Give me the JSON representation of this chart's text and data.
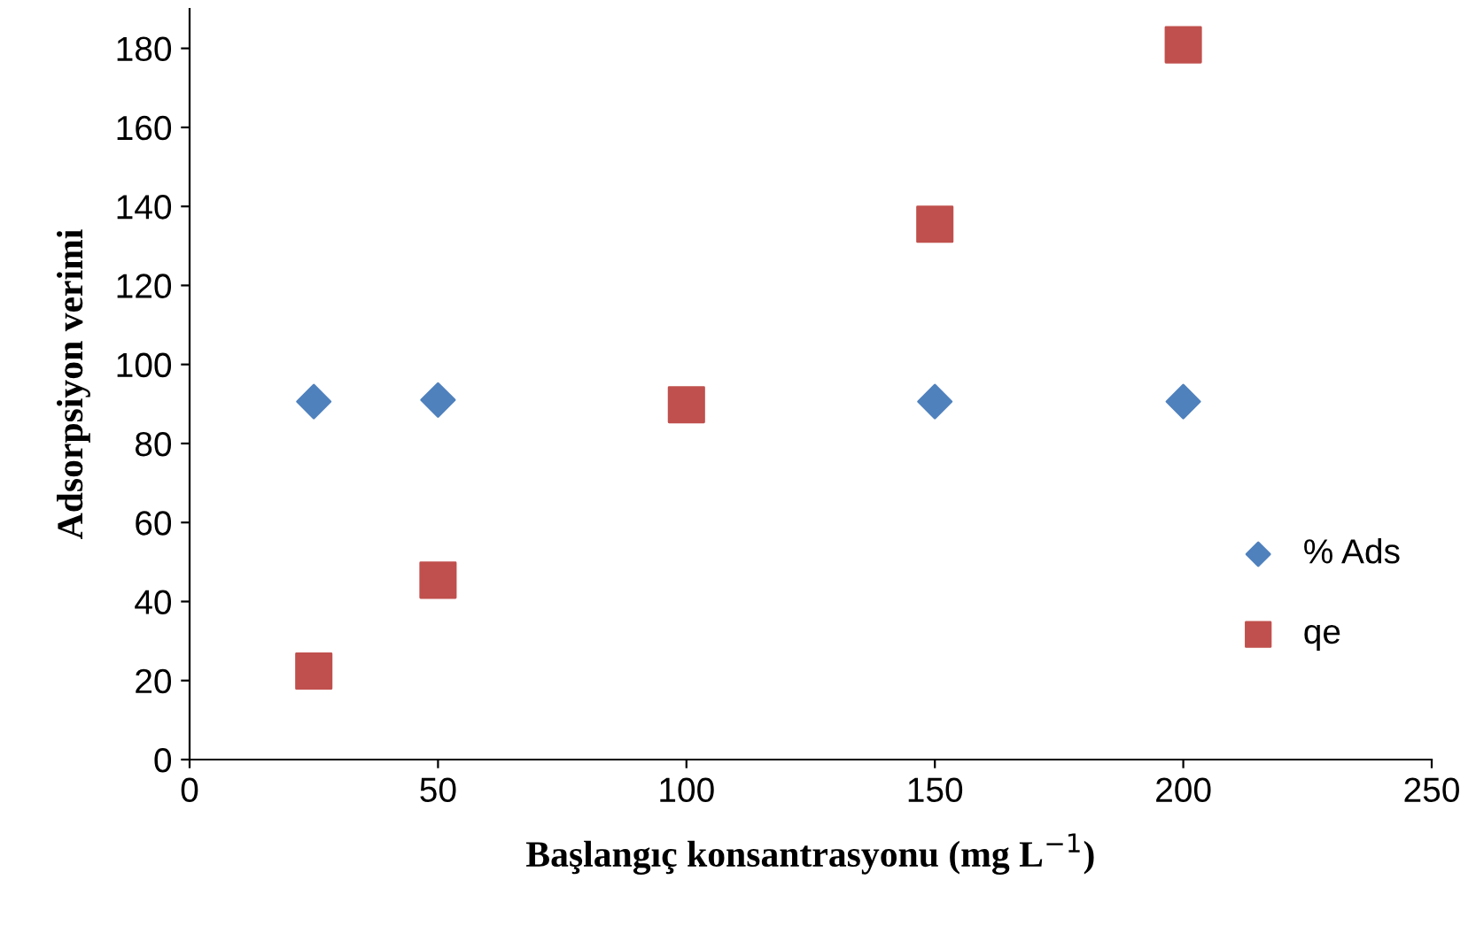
{
  "chart_data": {
    "type": "scatter",
    "xlabel": "Başlangıç konsantrasyonu (mg L$^{−1}$)",
    "ylabel": "Adsorpsiyon verimi",
    "xlim": [
      0,
      250
    ],
    "xticks": [
      0,
      50,
      100,
      150,
      200,
      250
    ],
    "ylim": [
      0,
      190
    ],
    "yticks": [
      0,
      20,
      40,
      60,
      80,
      100,
      120,
      140,
      160,
      180
    ],
    "grid": false,
    "legend": "right",
    "series": [
      {
        "name": "% Ads",
        "color": "#4f81bd",
        "marker": "diamond",
        "x": [
          25,
          50,
          150,
          200
        ],
        "values": [
          90.6,
          91.0,
          90.6,
          90.6
        ]
      },
      {
        "name": "qe",
        "color": "#c0504d",
        "marker": "square",
        "x": [
          25,
          50,
          100,
          150,
          200
        ],
        "values": [
          22.4,
          45.4,
          89.8,
          135.5,
          180.9
        ]
      }
    ]
  }
}
